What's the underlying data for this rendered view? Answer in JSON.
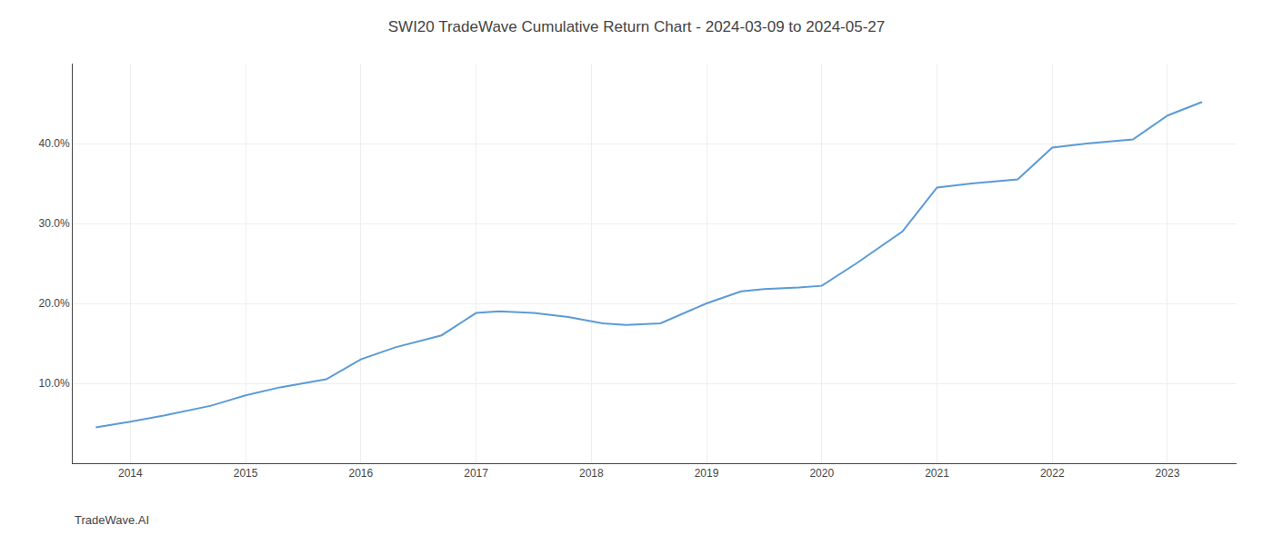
{
  "chart_data": {
    "type": "line",
    "title": "SWI20 TradeWave Cumulative Return Chart - 2024-03-09 to 2024-05-27",
    "annotations": [
      "TradeWave.AI"
    ],
    "x": [
      2013.7,
      2014.0,
      2014.3,
      2014.7,
      2015.0,
      2015.3,
      2015.7,
      2016.0,
      2016.3,
      2016.7,
      2017.0,
      2017.2,
      2017.5,
      2017.8,
      2018.1,
      2018.3,
      2018.6,
      2019.0,
      2019.3,
      2019.5,
      2019.8,
      2020.0,
      2020.3,
      2020.7,
      2021.0,
      2021.3,
      2021.7,
      2022.0,
      2022.3,
      2022.7,
      2023.0,
      2023.3
    ],
    "values": [
      4.5,
      5.2,
      6.0,
      7.2,
      8.5,
      9.5,
      10.5,
      13.0,
      14.5,
      16.0,
      18.8,
      19.0,
      18.8,
      18.3,
      17.5,
      17.3,
      17.5,
      20.0,
      21.5,
      21.8,
      22.0,
      22.2,
      25.0,
      29.0,
      34.5,
      35.0,
      35.5,
      39.5,
      40.0,
      40.5,
      43.5,
      45.2
    ],
    "color": "#5b9bd5",
    "xlim": [
      2013.5,
      2023.6
    ],
    "xticks": [
      2014,
      2015,
      2016,
      2017,
      2018,
      2019,
      2020,
      2021,
      2022,
      2023
    ],
    "ylim": [
      0,
      50
    ],
    "yticks": [
      {
        "value": 10.0,
        "label": "10.0%"
      },
      {
        "value": 20.0,
        "label": "20.0%"
      },
      {
        "value": 30.0,
        "label": "30.0%"
      },
      {
        "value": 40.0,
        "label": "40.0%"
      }
    ],
    "grid": true
  }
}
